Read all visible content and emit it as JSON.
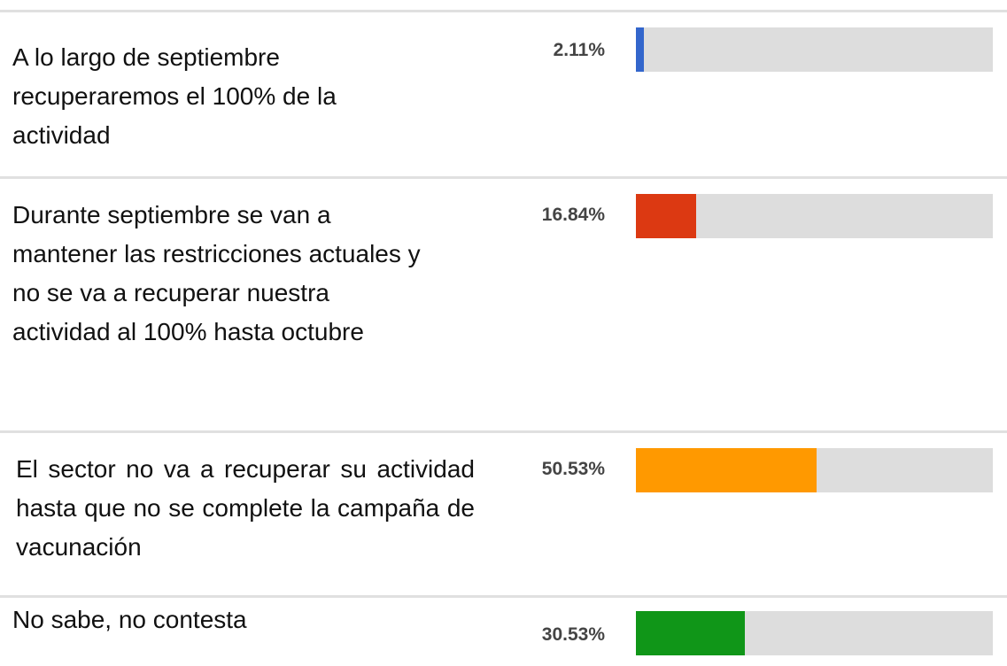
{
  "chart_data": {
    "type": "bar",
    "orientation": "horizontal",
    "categories": [
      "A lo largo de septiembre recuperaremos el 100% de la actividad",
      "Durante septiembre se van a mantener las restricciones actuales y no se va a recuperar nuestra actividad al 100% hasta octubre",
      "El sector no va a recuperar su actividad hasta que no se complete la campaña de vacunación",
      "No sabe, no contesta"
    ],
    "values": [
      2.11,
      16.84,
      50.53,
      30.53
    ],
    "value_labels": [
      "2.11%",
      "16.84%",
      "50.53%",
      "30.53%"
    ],
    "colors": [
      "#3366cc",
      "#dc3912",
      "#ff9900",
      "#109618"
    ],
    "track_color": "#dddddd",
    "xlim": [
      0,
      100
    ]
  }
}
